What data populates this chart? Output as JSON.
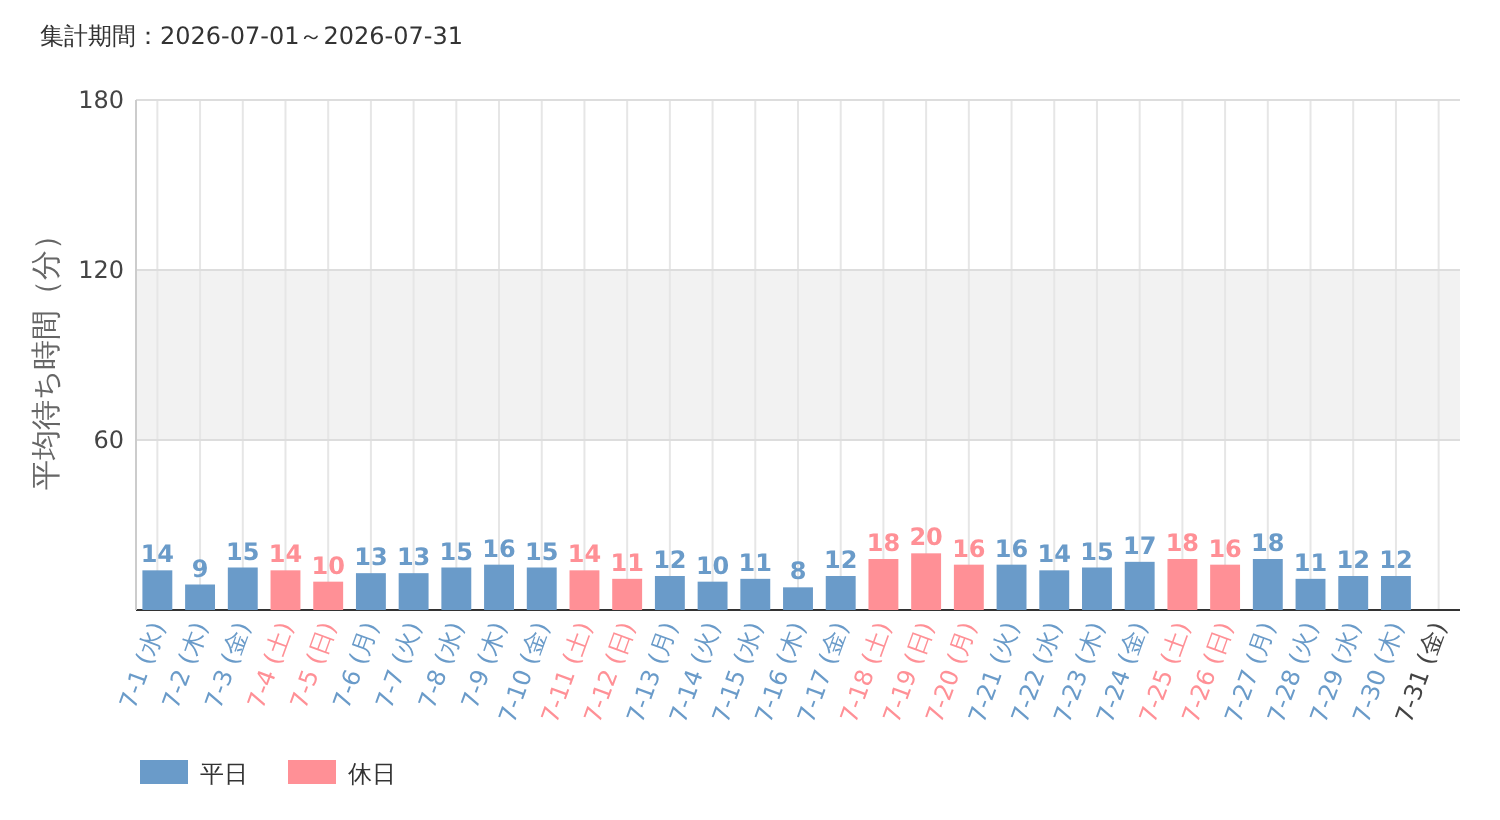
{
  "chart_data": {
    "type": "bar",
    "title": "集計期間：2026-07-01～2026-07-31",
    "ylabel": "平均待ち時間（分）",
    "categories": [
      "7-1 (水)",
      "7-2 (木)",
      "7-3 (金)",
      "7-4 (土)",
      "7-5 (日)",
      "7-6 (月)",
      "7-7 (火)",
      "7-8 (水)",
      "7-9 (木)",
      "7-10 (金)",
      "7-11 (土)",
      "7-12 (日)",
      "7-13 (月)",
      "7-14 (火)",
      "7-15 (水)",
      "7-16 (木)",
      "7-17 (金)",
      "7-18 (土)",
      "7-19 (日)",
      "7-20 (月)",
      "7-21 (火)",
      "7-22 (水)",
      "7-23 (木)",
      "7-24 (金)",
      "7-25 (土)",
      "7-26 (日)",
      "7-27 (月)",
      "7-28 (火)",
      "7-29 (水)",
      "7-30 (木)",
      "7-31 (金)"
    ],
    "series": [
      {
        "name": "平日",
        "color": "#6a9bc9",
        "values": [
          14,
          9,
          15,
          null,
          null,
          13,
          13,
          15,
          16,
          15,
          null,
          null,
          12,
          10,
          11,
          8,
          12,
          null,
          null,
          null,
          16,
          14,
          15,
          17,
          null,
          null,
          18,
          11,
          12,
          12,
          null
        ]
      },
      {
        "name": "休日",
        "color": "#ff9096",
        "values": [
          null,
          null,
          null,
          14,
          10,
          null,
          null,
          null,
          null,
          null,
          14,
          11,
          null,
          null,
          null,
          null,
          null,
          18,
          20,
          16,
          null,
          null,
          null,
          null,
          18,
          16,
          null,
          null,
          null,
          null,
          null
        ]
      }
    ],
    "ylim": [
      0,
      180
    ],
    "yticks": [
      {
        "value": 0,
        "label": null
      },
      60,
      120,
      180
    ],
    "bands": [
      {
        "axis": "y",
        "from": 60,
        "to": 120,
        "color": "#f2f2f2"
      }
    ],
    "grid": true,
    "data_labels": true,
    "legend": "bottom left"
  }
}
